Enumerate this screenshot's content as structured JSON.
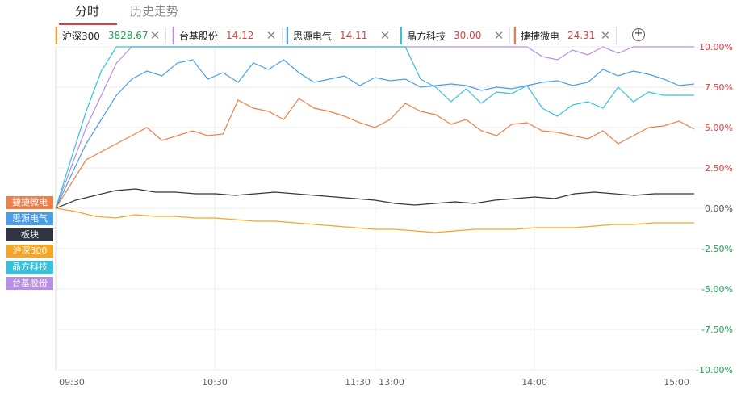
{
  "tabs": {
    "intraday": "分时",
    "history": "历史走势"
  },
  "stocks": [
    {
      "name": "沪深300",
      "value": "3828.67",
      "color": "#f5a623",
      "value_color": "#21a05a"
    },
    {
      "name": "台基股份",
      "value": "14.12",
      "color": "#b98ee6",
      "value_color": "#e23b3b"
    },
    {
      "name": "思源电气",
      "value": "14.11",
      "color": "#4a9ee8",
      "value_color": "#e23b3b"
    },
    {
      "name": "晶方科技",
      "value": "30.00",
      "color": "#33c2dc",
      "value_color": "#e23b3b"
    },
    {
      "name": "捷捷微电",
      "value": "24.31",
      "color": "#ef7f4a",
      "value_color": "#e23b3b"
    }
  ],
  "add_button": "+",
  "legend": [
    {
      "label": "捷捷微电",
      "color": "#ef7f4a"
    },
    {
      "label": "思源电气",
      "color": "#4a9ee8"
    },
    {
      "label": "板块",
      "color": "#2f3542"
    },
    {
      "label": "沪深300",
      "color": "#f5a623"
    },
    {
      "label": "晶方科技",
      "color": "#33c2dc"
    },
    {
      "label": "台基股份",
      "color": "#b98ee6"
    }
  ],
  "chart_data": {
    "type": "line",
    "x_ticks": [
      "09:30",
      "10:30",
      "11:30",
      "13:00",
      "14:00",
      "15:00"
    ],
    "y_ticks": [
      "10.00%",
      "7.50%",
      "5.00%",
      "2.50%",
      "0.00%",
      "-2.50%",
      "-5.00%",
      "-7.50%",
      "-10.00%"
    ],
    "ylim": [
      -10,
      10
    ],
    "grid": true,
    "series": [
      {
        "name": "台基股份",
        "color": "#b98ee6",
        "values": [
          0,
          2.5,
          5,
          7,
          9,
          10,
          10,
          10,
          10,
          10,
          10,
          10,
          10,
          10,
          10,
          10,
          10,
          10,
          10,
          10,
          10,
          10,
          10,
          10,
          10,
          10,
          10,
          10,
          10,
          10,
          10,
          10,
          9.4,
          9.2,
          9.8,
          9.5,
          10,
          9.6,
          10,
          10,
          10,
          10,
          10
        ]
      },
      {
        "name": "晶方科技",
        "color": "#33c2dc",
        "values": [
          0,
          3,
          6,
          8.5,
          10,
          10,
          10,
          10,
          10,
          10,
          10,
          10,
          10,
          10,
          10,
          10,
          10,
          10,
          10,
          10,
          10,
          10,
          10,
          10,
          8,
          7.5,
          6.6,
          7.4,
          6.5,
          7.2,
          7.1,
          7.6,
          6.2,
          5.7,
          6.4,
          6.6,
          6.2,
          7.5,
          6.6,
          7.2,
          7,
          7,
          7
        ]
      },
      {
        "name": "思源电气",
        "color": "#4a9ee8",
        "values": [
          0,
          2,
          4,
          5.5,
          7,
          8,
          8.5,
          8.2,
          9,
          9.2,
          8,
          8.4,
          7.8,
          9,
          8.6,
          9.2,
          8.4,
          7.8,
          8,
          8.2,
          7.6,
          8.1,
          7.9,
          8,
          7.5,
          7.6,
          7.7,
          7.6,
          7.3,
          7.5,
          7.4,
          7.6,
          7.8,
          7.9,
          7.6,
          7.8,
          8.6,
          8.2,
          8.5,
          8.3,
          8,
          7.6,
          7.7
        ]
      },
      {
        "name": "捷捷微电",
        "color": "#ef7f4a",
        "values": [
          0,
          1.5,
          3,
          3.5,
          4,
          4.5,
          5,
          4.2,
          4.5,
          4.8,
          4.5,
          4.6,
          6.7,
          6.2,
          6,
          5.5,
          6.8,
          6.2,
          6,
          5.7,
          5.3,
          5,
          5.5,
          6.5,
          6,
          5.8,
          5.2,
          5.5,
          4.8,
          4.5,
          5.2,
          5.3,
          4.8,
          4.7,
          4.5,
          4.3,
          4.8,
          4,
          4.5,
          5,
          5.1,
          5.4,
          4.9
        ]
      },
      {
        "name": "板块",
        "color": "#2f3542",
        "values": [
          0,
          0.5,
          0.8,
          1.1,
          1.2,
          1.0,
          1.0,
          0.9,
          0.9,
          0.8,
          0.9,
          1.0,
          0.9,
          0.8,
          0.7,
          0.6,
          0.5,
          0.3,
          0.2,
          0.3,
          0.4,
          0.3,
          0.5,
          0.6,
          0.7,
          0.6,
          0.9,
          1.0,
          0.9,
          0.8,
          0.9,
          0.9,
          0.9
        ]
      },
      {
        "name": "沪深300",
        "color": "#f5a623",
        "values": [
          0,
          -0.2,
          -0.5,
          -0.6,
          -0.4,
          -0.5,
          -0.5,
          -0.6,
          -0.6,
          -0.7,
          -0.8,
          -0.8,
          -0.9,
          -1.0,
          -1.1,
          -1.2,
          -1.3,
          -1.3,
          -1.4,
          -1.5,
          -1.4,
          -1.3,
          -1.3,
          -1.3,
          -1.2,
          -1.2,
          -1.2,
          -1.1,
          -1.0,
          -1.0,
          -0.9,
          -0.9,
          -0.9
        ]
      }
    ]
  }
}
